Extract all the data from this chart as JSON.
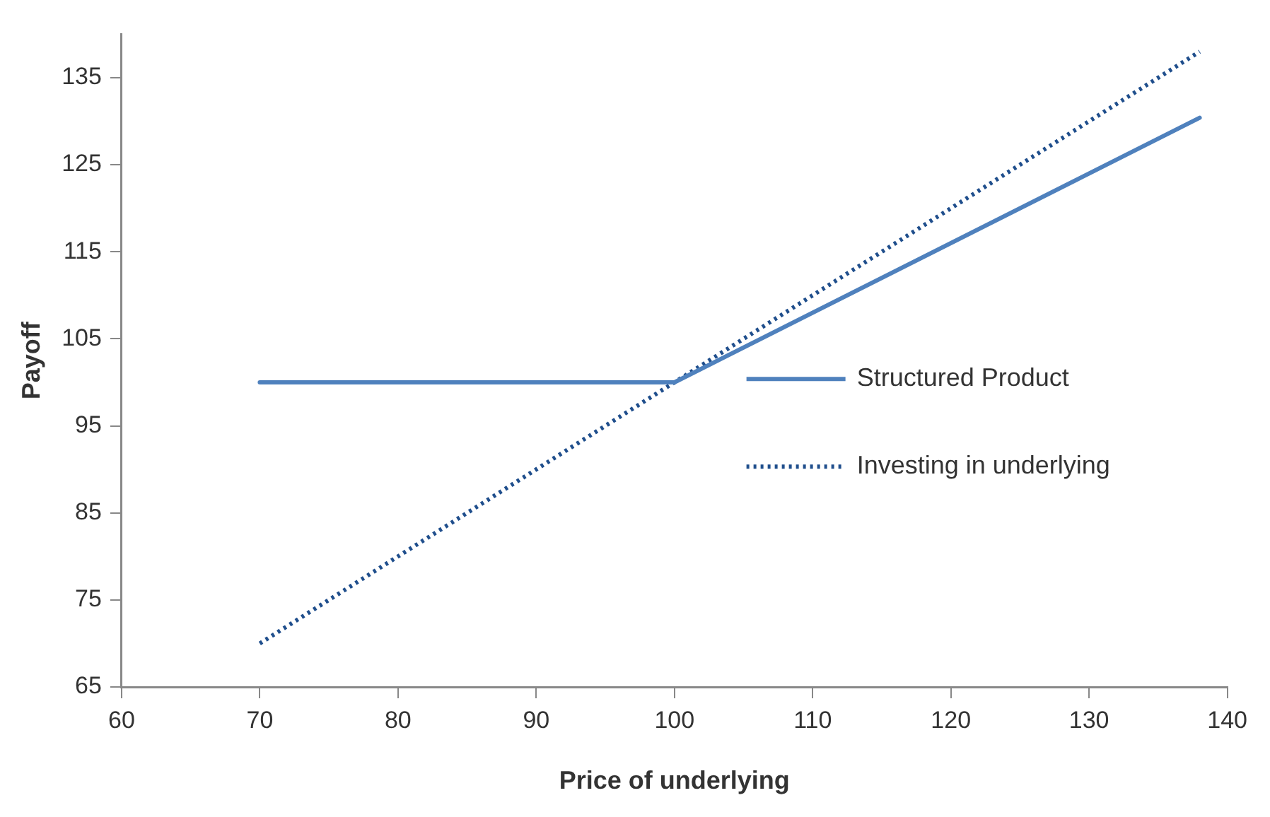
{
  "chart_data": {
    "type": "line",
    "xlabel": "Price of underlying",
    "ylabel": "Payoff",
    "xlim": [
      60,
      140
    ],
    "xticks": [
      60,
      70,
      80,
      90,
      100,
      110,
      120,
      130,
      140
    ],
    "ylim": [
      65,
      140
    ],
    "yticks": [
      65,
      75,
      85,
      95,
      105,
      115,
      125,
      135
    ],
    "grid": false,
    "legend": "center right",
    "marker": "none",
    "series": [
      {
        "name": "Structured Product",
        "color": "#4f81bd",
        "line_style": "solid",
        "x": [
          70,
          100,
          138
        ],
        "values": [
          100,
          100,
          130.4
        ]
      },
      {
        "name": "Investing in underlying",
        "color": "#1f4e8c",
        "line_style": "dotted",
        "x": [
          70,
          138
        ],
        "values": [
          70,
          138
        ]
      }
    ]
  }
}
